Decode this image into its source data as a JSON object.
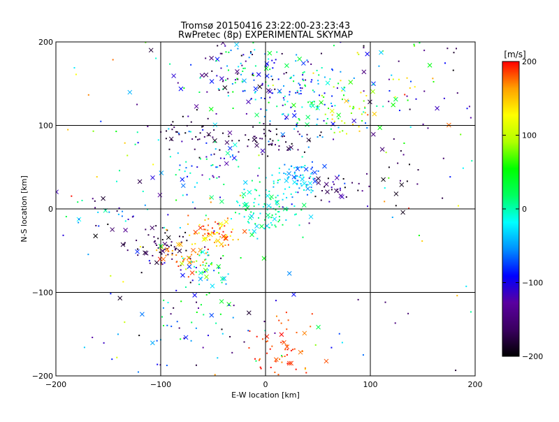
{
  "chart_data": {
    "type": "scatter",
    "title": "Tromsø 20150416 23:22:00-23:23:43",
    "subtitle": "RwPretec (8p) EXPERIMENTAL SKYMAP",
    "xlabel": "E-W location [km]",
    "ylabel": "N-S location [km]",
    "xlim": [
      -200,
      200
    ],
    "ylim": [
      -200,
      200
    ],
    "xticks": [
      -200,
      -100,
      0,
      100,
      200
    ],
    "yticks": [
      -200,
      -100,
      0,
      100,
      200
    ],
    "grid": true,
    "colorbar": {
      "label": "[m/s]",
      "range": [
        -200,
        200
      ],
      "ticks": [
        200,
        100,
        0,
        -100,
        -200
      ],
      "colormap": [
        "#000000",
        "#3a0060",
        "#5a00a0",
        "#0000ff",
        "#0090ff",
        "#00ffff",
        "#00ff60",
        "#00ff00",
        "#b0ff00",
        "#ffff00",
        "#ffa000",
        "#ff0000"
      ]
    },
    "markers": {
      "small": "dot",
      "large": "x"
    },
    "clusters": [
      {
        "cx": -20,
        "cy": 160,
        "sx": 30,
        "sy": 25,
        "n": 120,
        "vmin": -200,
        "vmax": 60
      },
      {
        "cx": 30,
        "cy": 130,
        "sx": 25,
        "sy": 30,
        "n": 120,
        "vmin": -120,
        "vmax": 40
      },
      {
        "cx": 70,
        "cy": 120,
        "sx": 15,
        "sy": 15,
        "n": 40,
        "vmin": 40,
        "vmax": 160
      },
      {
        "cx": -70,
        "cy": 90,
        "sx": 20,
        "sy": 12,
        "n": 40,
        "vmin": -200,
        "vmax": -150
      },
      {
        "cx": 10,
        "cy": 85,
        "sx": 20,
        "sy": 10,
        "n": 50,
        "vmin": -200,
        "vmax": -150
      },
      {
        "cx": 30,
        "cy": 40,
        "sx": 12,
        "sy": 10,
        "n": 70,
        "vmin": -80,
        "vmax": 0
      },
      {
        "cx": 65,
        "cy": 25,
        "sx": 15,
        "sy": 8,
        "n": 30,
        "vmin": -200,
        "vmax": -100
      },
      {
        "cx": -60,
        "cy": 50,
        "sx": 25,
        "sy": 25,
        "n": 70,
        "vmin": -150,
        "vmax": 20
      },
      {
        "cx": 5,
        "cy": 0,
        "sx": 20,
        "sy": 15,
        "n": 110,
        "vmin": -40,
        "vmax": 40
      },
      {
        "cx": -45,
        "cy": -30,
        "sx": 12,
        "sy": 10,
        "n": 70,
        "vmin": 120,
        "vmax": 200
      },
      {
        "cx": -100,
        "cy": -45,
        "sx": 15,
        "sy": 12,
        "n": 60,
        "vmin": -200,
        "vmax": -150
      },
      {
        "cx": -80,
        "cy": -60,
        "sx": 15,
        "sy": 10,
        "n": 40,
        "vmin": 150,
        "vmax": 200
      },
      {
        "cx": -60,
        "cy": -75,
        "sx": 15,
        "sy": 15,
        "n": 50,
        "vmin": -120,
        "vmax": 100
      },
      {
        "cx": -150,
        "cy": -10,
        "sx": 20,
        "sy": 15,
        "n": 30,
        "vmin": -200,
        "vmax": 40
      },
      {
        "cx": 15,
        "cy": -170,
        "sx": 20,
        "sy": 20,
        "n": 60,
        "vmin": 170,
        "vmax": 200
      },
      {
        "cx": -70,
        "cy": -140,
        "sx": 40,
        "sy": 30,
        "n": 60,
        "vmin": -200,
        "vmax": 60
      },
      {
        "cx": 130,
        "cy": 140,
        "sx": 35,
        "sy": 35,
        "n": 70,
        "vmin": -200,
        "vmax": 200
      },
      {
        "cx": 130,
        "cy": 40,
        "sx": 25,
        "sy": 25,
        "n": 20,
        "vmin": -200,
        "vmax": -150
      }
    ],
    "background_points": 120
  }
}
